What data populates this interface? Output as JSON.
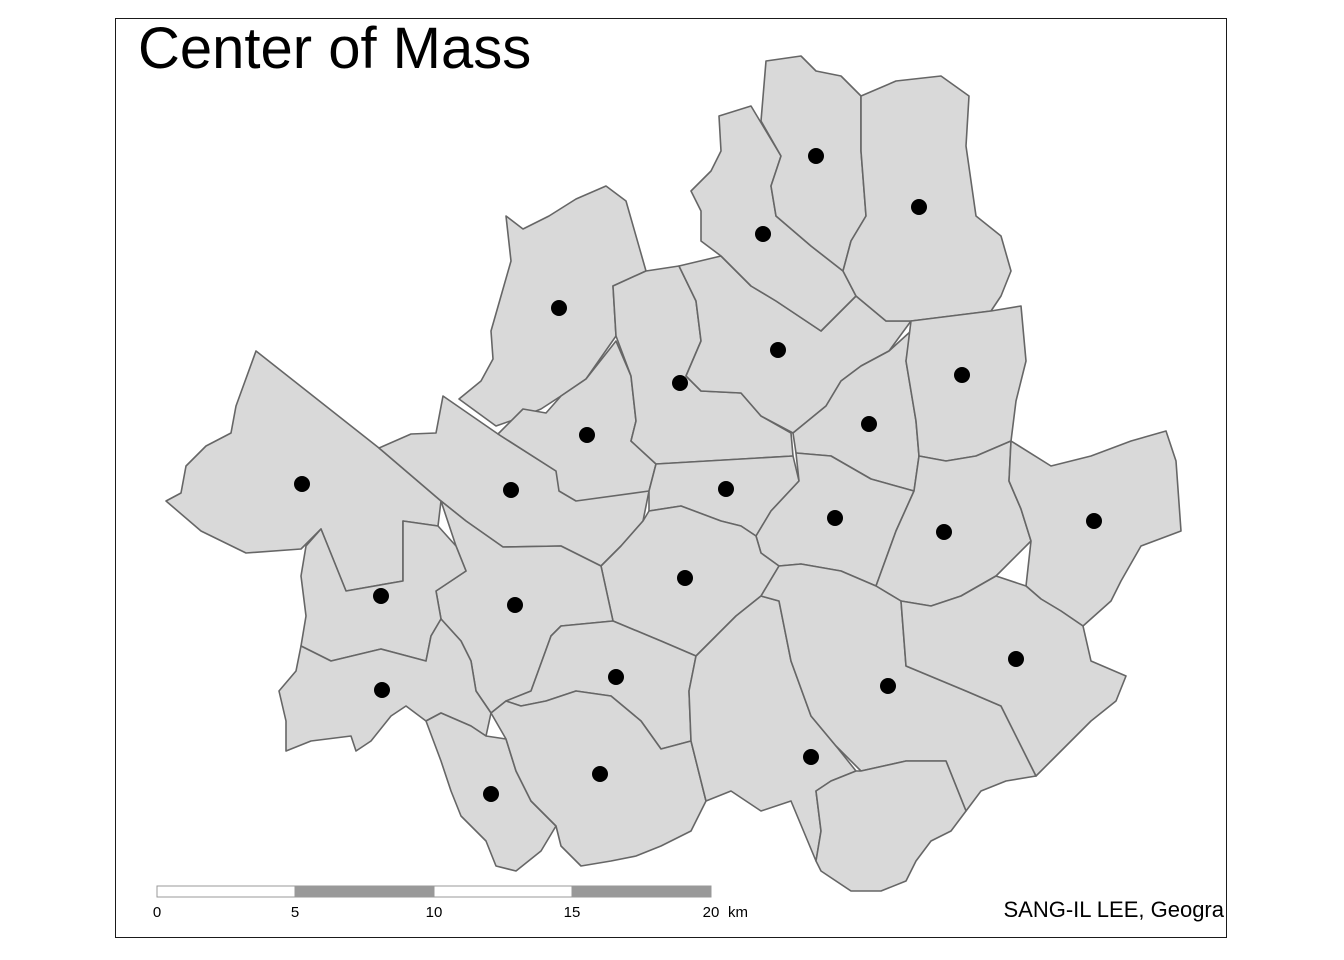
{
  "map": {
    "title": "Center of Mass",
    "credit": "SANG-IL LEE, Geogra",
    "colors": {
      "district_fill": "#d9d9d9",
      "district_border": "#666666",
      "centroid": "#000000",
      "frame": "#1a1a1a"
    },
    "centroid_marker": "filled-circle",
    "district_count": 25
  },
  "scale_bar": {
    "ticks": [
      "0",
      "5",
      "10",
      "15",
      "20"
    ],
    "unit": "km"
  }
}
